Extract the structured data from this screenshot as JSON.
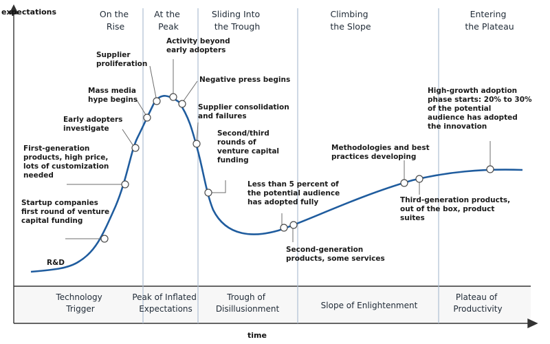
{
  "axes": {
    "y_label": "expectations",
    "x_label": "time"
  },
  "colors": {
    "curve": "#1f5c9e",
    "axis": "#333333",
    "divider": "#aebfd3",
    "baseline_band": "#f5f5f5"
  },
  "phases_top": [
    [
      "On the",
      "Rise"
    ],
    [
      "At the",
      "Peak"
    ],
    [
      "Sliding Into",
      "the Trough"
    ],
    [
      "Climbing",
      "the Slope"
    ],
    [
      "Entering",
      "the Plateau"
    ]
  ],
  "phases_bottom": [
    [
      "Technology",
      "Trigger"
    ],
    [
      "Peak of Inflated",
      "Expectations"
    ],
    [
      "Trough of",
      "Disillusionment"
    ],
    [
      "Slope of Enlightenment"
    ],
    [
      "Plateau of",
      "Productivity"
    ]
  ],
  "annotations": [
    [
      "R&D"
    ],
    [
      "Startup companies",
      "first round of venture",
      "capital funding"
    ],
    [
      "First-generation",
      "products, high price,",
      "lots of customization",
      "needed"
    ],
    [
      "Early adopters",
      "investigate"
    ],
    [
      "Mass media",
      "hype begins"
    ],
    [
      "Supplier",
      "proliferation"
    ],
    [
      "Activity beyond",
      "early adopters"
    ],
    [
      "Negative press begins"
    ],
    [
      "Supplier consolidation",
      "and failures"
    ],
    [
      "Second/third",
      "rounds of",
      "venture capital",
      "funding"
    ],
    [
      "Less than 5 percent of",
      "the potential audience",
      "has adopted fully"
    ],
    [
      "Second-generation",
      "products, some services"
    ],
    [
      "Methodologies and best",
      "practices developing"
    ],
    [
      "Third-generation products,",
      "out of the box, product",
      "suites"
    ],
    [
      "High-growth adoption",
      "phase starts: 20% to 30%",
      "of the potential",
      "audience has adopted",
      "the innovation"
    ]
  ]
}
